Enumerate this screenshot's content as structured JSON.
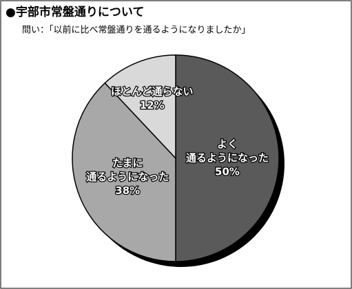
{
  "chart_data": {
    "type": "pie",
    "title": "●宇部市常盤通りについて",
    "subtitle": "問い：「以前に比べ常盤通りを通るようになりましたか」",
    "categories": [
      [
        "よく",
        "通るようになった"
      ],
      [
        "たまに",
        "通るようになった"
      ],
      [
        "ほとんど通らない"
      ]
    ],
    "values": [
      50,
      38,
      12
    ],
    "value_labels": [
      "50%",
      "38%",
      "12%"
    ],
    "colors": [
      "#5a5a5a",
      "#a8a8a8",
      "#d9d9d9"
    ]
  }
}
